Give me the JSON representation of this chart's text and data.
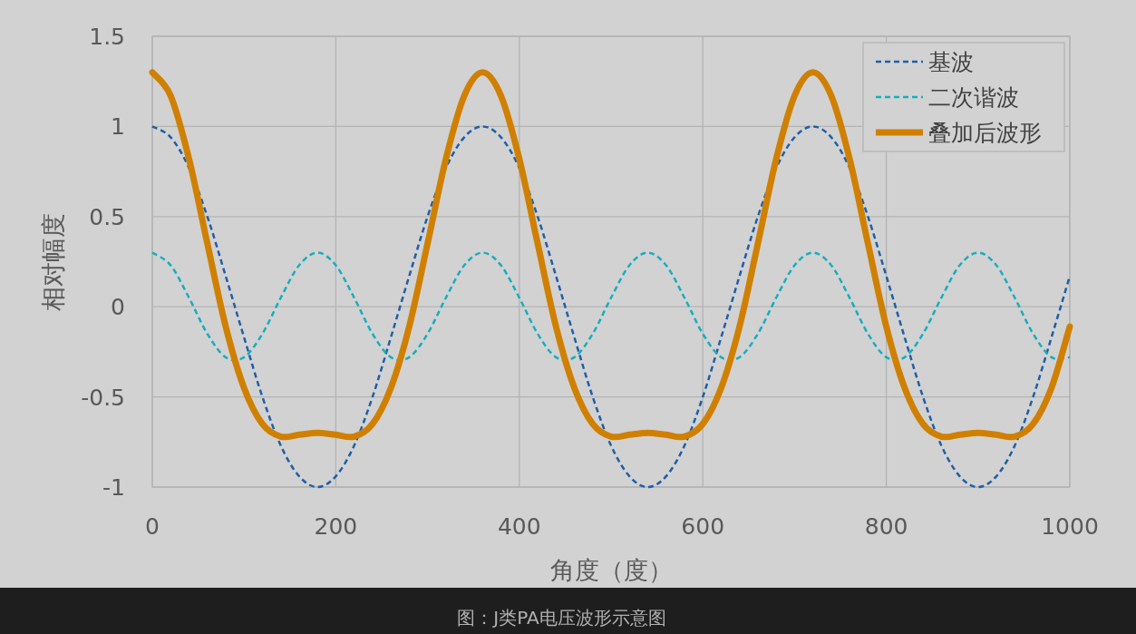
{
  "chart_data": {
    "type": "line",
    "xlabel": "角度（度）",
    "ylabel": "相对幅度",
    "xlim": [
      0,
      1000
    ],
    "xticks": [
      0,
      200,
      400,
      600,
      800,
      1000
    ],
    "ylim": [
      -1,
      1.5
    ],
    "yticks": [
      -1,
      -0.5,
      0,
      0.5,
      1,
      1.5
    ],
    "grid": true,
    "legend": "top right",
    "annotations": [
      "图：J类PA电压波形示意图"
    ],
    "x": [
      0,
      20,
      40,
      60,
      80,
      100,
      120,
      140,
      160,
      180,
      200,
      220,
      240,
      260,
      280,
      300,
      320,
      340,
      360,
      380,
      400,
      420,
      440,
      460,
      480,
      500,
      520,
      540,
      560,
      580,
      600,
      620,
      640,
      660,
      680,
      700,
      720,
      740,
      760,
      780,
      800,
      820,
      840,
      860,
      880,
      900,
      920,
      940,
      960,
      980,
      1000
    ],
    "series": [
      {
        "name": "基波",
        "color": "#1f5fa8",
        "line_style": "dashed",
        "values": [
          1,
          0.94,
          0.77,
          0.5,
          0.17,
          -0.17,
          -0.5,
          -0.77,
          -0.94,
          -1,
          -0.94,
          -0.77,
          -0.5,
          -0.17,
          0.17,
          0.5,
          0.77,
          0.94,
          1,
          0.94,
          0.77,
          0.5,
          0.17,
          -0.17,
          -0.5,
          -0.77,
          -0.94,
          -1,
          -0.94,
          -0.77,
          -0.5,
          -0.17,
          0.17,
          0.5,
          0.77,
          0.94,
          1,
          0.94,
          0.77,
          0.5,
          0.17,
          -0.17,
          -0.5,
          -0.77,
          -0.94,
          -1,
          -0.94,
          -0.77,
          -0.5,
          -0.17,
          0.17
        ]
      },
      {
        "name": "二次谐波",
        "color": "#17aebf",
        "line_style": "dashed",
        "values": [
          0.3,
          0.23,
          0.05,
          -0.15,
          -0.28,
          -0.28,
          -0.15,
          0.05,
          0.23,
          0.3,
          0.23,
          0.05,
          -0.15,
          -0.28,
          -0.28,
          -0.15,
          0.05,
          0.23,
          0.3,
          0.23,
          0.05,
          -0.15,
          -0.28,
          -0.28,
          -0.15,
          0.05,
          0.23,
          0.3,
          0.23,
          0.05,
          -0.15,
          -0.28,
          -0.28,
          -0.15,
          0.05,
          0.23,
          0.3,
          0.23,
          0.05,
          -0.15,
          -0.28,
          -0.28,
          -0.15,
          0.05,
          0.23,
          0.3,
          0.23,
          0.05,
          -0.15,
          -0.28,
          -0.28
        ]
      },
      {
        "name": "叠加后波形",
        "color": "#d08000",
        "line_style": "solid",
        "values": [
          1.3,
          1.17,
          0.82,
          0.35,
          -0.11,
          -0.45,
          -0.65,
          -0.72,
          -0.71,
          -0.7,
          -0.71,
          -0.72,
          -0.65,
          -0.45,
          -0.11,
          0.35,
          0.82,
          1.17,
          1.3,
          1.17,
          0.82,
          0.35,
          -0.11,
          -0.45,
          -0.65,
          -0.72,
          -0.71,
          -0.7,
          -0.71,
          -0.72,
          -0.65,
          -0.45,
          -0.11,
          0.35,
          0.82,
          1.17,
          1.3,
          1.17,
          0.82,
          0.35,
          -0.11,
          -0.45,
          -0.65,
          -0.72,
          -0.71,
          -0.7,
          -0.71,
          -0.72,
          -0.65,
          -0.45,
          -0.11
        ]
      }
    ]
  }
}
